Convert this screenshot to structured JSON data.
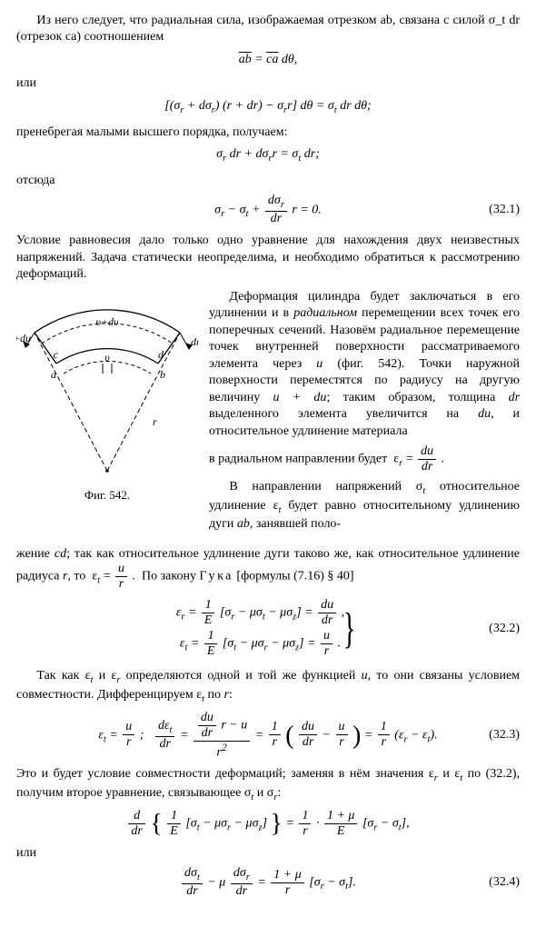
{
  "p1": "Из него следует, что радиальная сила, изображаемая отрезком ab, связана с силой σ_t dr (отрезок ca) соотношением",
  "lbl_or1": "или",
  "eq1_html": "<span class=\"ov\">ab</span> = <span class=\"ov\">ca</span> dθ,",
  "eq2_html": "[(σ<sub>r</sub> + dσ<sub>r</sub>) (r + dr) − σ<sub>r</sub>r] dθ = σ<sub>t</sub> dr dθ;",
  "p2": "пренебрегая малыми высшего порядка, получаем:",
  "eq3_html": "σ<sub>r</sub> dr + dσ<sub>r</sub>r = σ<sub>t</sub> dr;",
  "lbl_hence": "отсюда",
  "eq4_html": "σ<sub>r</sub> − σ<sub>t</sub> + <span class=\"frac\"><span class=\"fn\">dσ<sub>r</sub></span><span class=\"fd\">dr</span></span> r = 0.",
  "eq4_num": "(32.1)",
  "p3": "Условие равновесия дало только одно уравнение для нахождения двух неизвестных напряжений. Задача статически неопределима, и необходимо обратиться к рассмотрению деформаций.",
  "fig_caption": "Фиг. 542.",
  "fig_labels": {
    "top": "υ+dυ",
    "mid": "υ",
    "a": "a",
    "b": "b",
    "c": "c",
    "d": "d",
    "r": "r",
    "dr": "dr",
    "drdu": "dr+du"
  },
  "p4_html": "Деформация цилиндра будет заключаться в его удлинении и в <i>радиальном</i> перемещении всех точек его поперечных сечений. Назовём радиальное перемещение точек внутренней поверхности рассматриваемого элемента через <i>u</i> (фиг. 542). Точки наружной поверхности переместятся по радиусу на другую величину <i>u + du</i>; таким образом, толщина <i>dr</i> выделенного элемента увеличится на <i>du</i>, и относительное удлинение материала",
  "p4b_html": "в радиальном направлении будет&nbsp; ε<sub><i>r</i></sub> = <span class=\"frac\"><span class=\"fn\"><i>du</i></span><span class=\"fd\"><i>dr</i></span></span> .",
  "p5a_html": "В направлении напряжений σ<sub><i>t</i></sub> относительное удлинение ε<sub><i>t</i></sub> будет равно относительному удлинению дуги <i>ab</i>, занявшей поло-",
  "p5_html": "жение <i>cd</i>; так как относительное удлинение дуги таково же, как относительное удлинение радиуса <i>r</i>, то&nbsp; ε<sub><i>t</i></sub> = <span class=\"frac\"><span class=\"fn\"><i>u</i></span><span class=\"fd\"><i>r</i></span></span> . &nbsp;По закону <span class=\"spaced\">Гука</span> [формулы (7.16) §&nbsp;40]",
  "eq5a_html": "ε<sub>r</sub> = <span class=\"frac\"><span class=\"fn\">1</span><span class=\"fd\">E</span></span> [σ<sub>r</sub> − μσ<sub>t</sub> − μσ<sub>z</sub>] = <span class=\"frac\"><span class=\"fn\">du</span><span class=\"fd\">dr</span></span> ,",
  "eq5b_html": "ε<sub>t</sub> = <span class=\"frac\"><span class=\"fn\">1</span><span class=\"fd\">E</span></span> [σ<sub>t</sub> − μσ<sub>r</sub> − μσ<sub>z</sub>] = <span class=\"frac\"><span class=\"fn\">u</span><span class=\"fd\">r</span></span> .",
  "eq5_num": "(32.2)",
  "p6_html": "Так как ε<sub><i>t</i></sub> и ε<sub><i>r</i></sub> определяются одной и той же функцией <i>u</i>, то они связаны условием совместности. Дифференцируем ε<sub><i>t</i></sub> по <i>r</i>:",
  "eq6_html": "ε<sub>t</sub> = <span class=\"frac\"><span class=\"fn\">u</span><span class=\"fd\">r</span></span> ;&nbsp;&nbsp; <span class=\"frac\"><span class=\"fn\">dε<sub>t</sub></span><span class=\"fd\">dr</span></span> = <span class=\"frac\"><span class=\"fn\"><span class=\"frac\"><span class=\"fn\">du</span><span class=\"fd\">dr</span></span> r − u</span><span class=\"fd\">r<sup>2</sup></span></span> = <span class=\"frac\"><span class=\"fn\">1</span><span class=\"fd\">r</span></span> <span class=\"bigbr\">(</span> <span class=\"frac\"><span class=\"fn\">du</span><span class=\"fd\">dr</span></span> − <span class=\"frac\"><span class=\"fn\">u</span><span class=\"fd\">r</span></span> <span class=\"bigbr\">)</span> = <span class=\"frac\"><span class=\"fn\">1</span><span class=\"fd\">r</span></span> (ε<sub>r</sub> − ε<sub>t</sub>).",
  "eq6_num": "(32.3)",
  "p7_html": "Это и будет условие совместности деформаций; заменяя в нём значения ε<sub><i>r</i></sub> и ε<sub><i>t</i></sub> по (32.2), получим второе уравнение, связывающее σ<sub><i>t</i></sub> и σ<sub><i>r</i></sub>:",
  "eq7_html": "<span class=\"frac\"><span class=\"fn\">d</span><span class=\"fd\">dr</span></span> <span class=\"bigbr\">{</span> <span class=\"frac\"><span class=\"fn\">1</span><span class=\"fd\">E</span></span> [σ<sub>t</sub> − μσ<sub>r</sub> − μσ<sub>z</sub>] <span class=\"bigbr\">}</span> = <span class=\"frac\"><span class=\"fn\">1</span><span class=\"fd\">r</span></span> · <span class=\"frac\"><span class=\"fn\">1 + μ</span><span class=\"fd\">E</span></span> [σ<sub>r</sub> − σ<sub>t</sub>],",
  "lbl_or2": "или",
  "eq8_html": "<span class=\"frac\"><span class=\"fn\">dσ<sub>t</sub></span><span class=\"fd\">dr</span></span> − μ <span class=\"frac\"><span class=\"fn\">dσ<sub>r</sub></span><span class=\"fd\">dr</span></span> = <span class=\"frac\"><span class=\"fn\">1 + μ</span><span class=\"fd\">r</span></span> [σ<sub>r</sub> − σ<sub>t</sub>].",
  "eq8_num": "(32.4)",
  "colors": {
    "text": "#000000",
    "bg": "#ffffff"
  }
}
